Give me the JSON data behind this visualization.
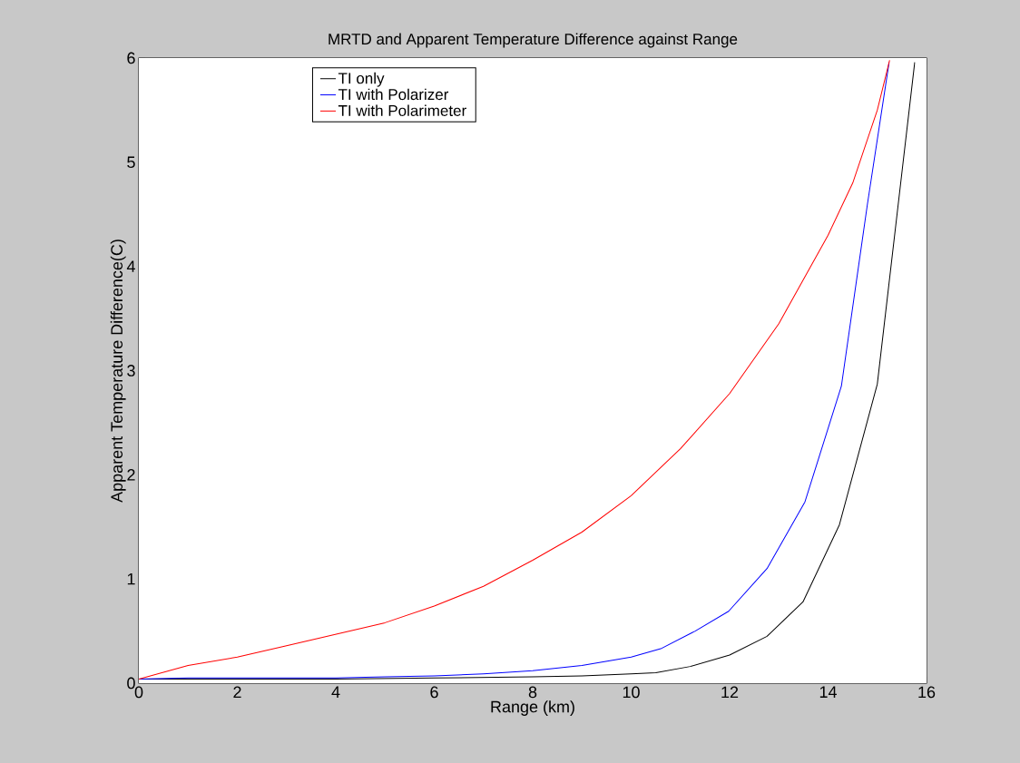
{
  "chart_data": {
    "type": "line",
    "title": "MRTD and Apparent Temperature Difference against Range",
    "xlabel": "Range (km)",
    "ylabel": "Apparent Temperature Difference(C)",
    "xlim": [
      0,
      16
    ],
    "ylim": [
      0,
      6
    ],
    "xticks": [
      0,
      2,
      4,
      6,
      8,
      10,
      12,
      14,
      16
    ],
    "yticks": [
      0,
      1,
      2,
      3,
      4,
      5,
      6
    ],
    "legend": "top left",
    "series": [
      {
        "name": "TI only",
        "color": "#000000",
        "x": [
          0,
          2,
          4,
          6,
          8,
          9,
          10,
          10.5,
          11.2,
          12,
          12.76,
          13.49,
          14.23,
          15.0,
          15.76
        ],
        "values": [
          0.04,
          0.04,
          0.04,
          0.05,
          0.06,
          0.07,
          0.09,
          0.1,
          0.16,
          0.27,
          0.45,
          0.78,
          1.52,
          2.87,
          5.96
        ]
      },
      {
        "name": "TI with Polarizer",
        "color": "#0000ff",
        "x": [
          0,
          1,
          2,
          3,
          4,
          5,
          6,
          7,
          8,
          9,
          10,
          10.6,
          11.3,
          11.98,
          12.76,
          13.53,
          14.27,
          14.8,
          15.24
        ],
        "values": [
          0.04,
          0.05,
          0.05,
          0.05,
          0.05,
          0.06,
          0.07,
          0.09,
          0.12,
          0.17,
          0.25,
          0.33,
          0.5,
          0.69,
          1.1,
          1.74,
          2.85,
          4.6,
          5.96
        ]
      },
      {
        "name": "TI with Polarimeter",
        "color": "#ff0000",
        "x": [
          0,
          1,
          2,
          3,
          4,
          5,
          6,
          7,
          8,
          9,
          10,
          11,
          12,
          13,
          14,
          14.5,
          15,
          15.25
        ],
        "values": [
          0.04,
          0.17,
          0.25,
          0.36,
          0.47,
          0.58,
          0.74,
          0.93,
          1.18,
          1.45,
          1.8,
          2.25,
          2.78,
          3.45,
          4.3,
          4.8,
          5.5,
          5.98
        ]
      }
    ]
  }
}
